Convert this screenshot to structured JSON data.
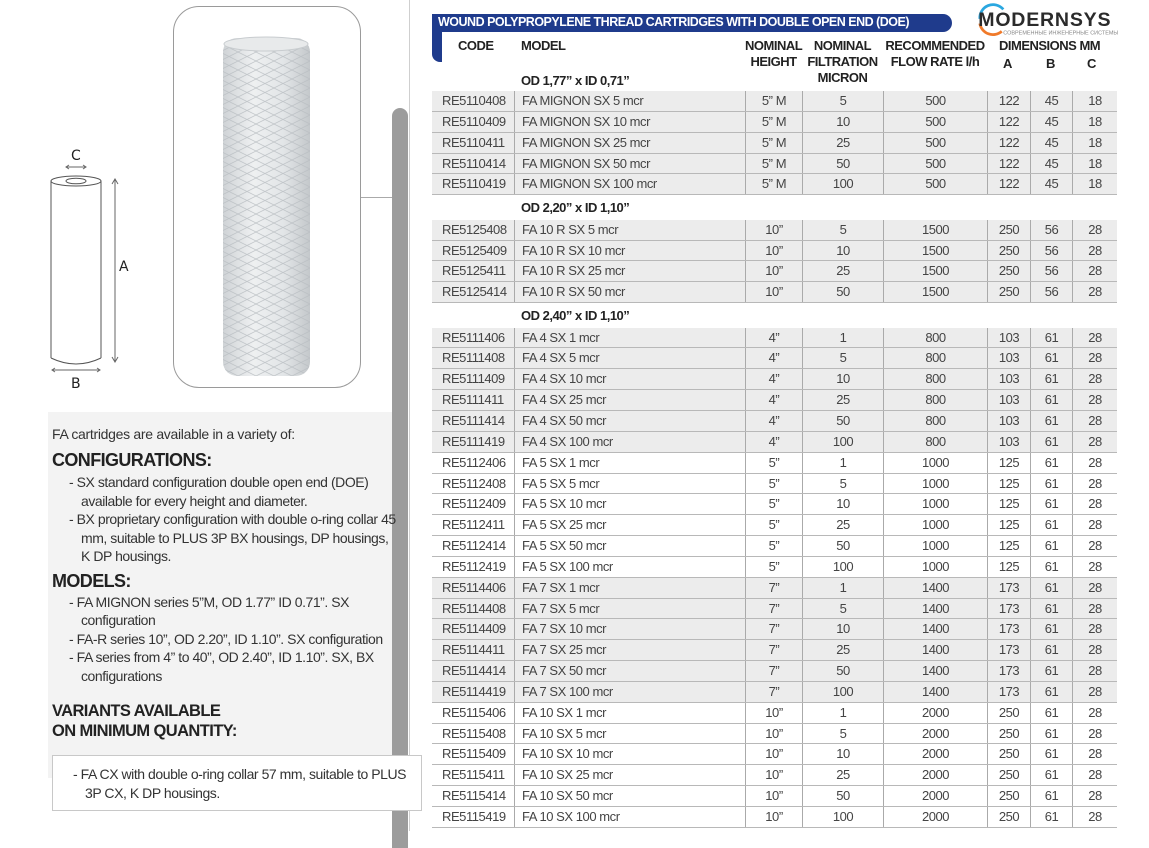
{
  "diagram": {
    "label_a": "A",
    "label_b": "B",
    "label_c": "C"
  },
  "left": {
    "intro": "FA cartridges are available in a variety of:",
    "configurations_title": "CONFIGURATIONS:",
    "configurations": [
      "- SX standard configuration double open end (DOE) available for every height and diameter.",
      "- BX proprietary configuration with double o-ring collar 45 mm, suitable to PLUS 3P BX housings, DP housings, K DP housings."
    ],
    "models_title": "MODELS:",
    "models": [
      "- FA MIGNON series 5”M, OD 1.77” ID 0.71”. SX configuration",
      "- FA-R series 10”, OD 2.20”, ID 1.10”. SX configuration",
      "- FA series from 4” to 40”, OD 2.40”, ID 1.10”. SX, BX configurations"
    ],
    "variants_title_1": "VARIANTS AVAILABLE",
    "variants_title_2": "ON MINIMUM QUANTITY:",
    "variants": [
      "- FA CX with double o-ring collar 57 mm, suitable to PLUS 3P CX, K DP housings."
    ]
  },
  "table": {
    "title": "WOUND POLYPROPYLENE THREAD CARTRIDGES WITH DOUBLE OPEN END (DOE)",
    "headers": {
      "code": "CODE",
      "model": "MODEL",
      "height_1": "NOMINAL",
      "height_2": "HEIGHT",
      "micron_1": "NOMINAL",
      "micron_2": "FILTRATION",
      "micron_3": "MICRON",
      "flow_1": "RECOMMENDED",
      "flow_2": "FLOW RATE l/h",
      "dims": "DIMENSIONS MM",
      "a": "A",
      "b": "B",
      "c": "C"
    },
    "accent_color": "#1f3b8c",
    "sections": [
      {
        "title": "OD 1,77” x ID 0,71”",
        "groups": [
          {
            "shade": true,
            "rows": [
              [
                "RE5110408",
                "FA MIGNON SX 5 mcr",
                "5” M",
                "5",
                "500",
                "122",
                "45",
                "18"
              ],
              [
                "RE5110409",
                "FA MIGNON SX 10 mcr",
                "5” M",
                "10",
                "500",
                "122",
                "45",
                "18"
              ],
              [
                "RE5110411",
                "FA MIGNON SX 25 mcr",
                "5” M",
                "25",
                "500",
                "122",
                "45",
                "18"
              ],
              [
                "RE5110414",
                "FA MIGNON SX 50 mcr",
                "5” M",
                "50",
                "500",
                "122",
                "45",
                "18"
              ],
              [
                "RE5110419",
                "FA MIGNON SX 100 mcr",
                "5” M",
                "100",
                "500",
                "122",
                "45",
                "18"
              ]
            ]
          }
        ]
      },
      {
        "title": "OD 2,20” x ID 1,10”",
        "groups": [
          {
            "shade": true,
            "rows": [
              [
                "RE5125408",
                "FA 10 R SX 5 mcr",
                "10”",
                "5",
                "1500",
                "250",
                "56",
                "28"
              ],
              [
                "RE5125409",
                "FA 10 R SX 10 mcr",
                "10”",
                "10",
                "1500",
                "250",
                "56",
                "28"
              ],
              [
                "RE5125411",
                "FA 10 R SX 25 mcr",
                "10”",
                "25",
                "1500",
                "250",
                "56",
                "28"
              ],
              [
                "RE5125414",
                "FA 10 R SX 50 mcr",
                "10”",
                "50",
                "1500",
                "250",
                "56",
                "28"
              ]
            ]
          }
        ]
      },
      {
        "title": "OD 2,40” x ID 1,10”",
        "groups": [
          {
            "shade": true,
            "rows": [
              [
                "RE5111406",
                "FA 4 SX 1 mcr",
                "4”",
                "1",
                "800",
                "103",
                "61",
                "28"
              ],
              [
                "RE5111408",
                "FA 4 SX 5 mcr",
                "4”",
                "5",
                "800",
                "103",
                "61",
                "28"
              ],
              [
                "RE5111409",
                "FA 4 SX 10 mcr",
                "4”",
                "10",
                "800",
                "103",
                "61",
                "28"
              ],
              [
                "RE5111411",
                "FA 4 SX 25 mcr",
                "4”",
                "25",
                "800",
                "103",
                "61",
                "28"
              ],
              [
                "RE5111414",
                "FA 4 SX 50 mcr",
                "4”",
                "50",
                "800",
                "103",
                "61",
                "28"
              ],
              [
                "RE5111419",
                "FA 4 SX 100 mcr",
                "4”",
                "100",
                "800",
                "103",
                "61",
                "28"
              ]
            ]
          },
          {
            "shade": false,
            "rows": [
              [
                "RE5112406",
                "FA 5 SX 1 mcr",
                "5”",
                "1",
                "1000",
                "125",
                "61",
                "28"
              ],
              [
                "RE5112408",
                "FA 5 SX 5 mcr",
                "5”",
                "5",
                "1000",
                "125",
                "61",
                "28"
              ],
              [
                "RE5112409",
                "FA 5 SX 10 mcr",
                "5”",
                "10",
                "1000",
                "125",
                "61",
                "28"
              ],
              [
                "RE5112411",
                "FA 5 SX 25 mcr",
                "5”",
                "25",
                "1000",
                "125",
                "61",
                "28"
              ],
              [
                "RE5112414",
                "FA 5 SX 50 mcr",
                "5”",
                "50",
                "1000",
                "125",
                "61",
                "28"
              ],
              [
                "RE5112419",
                "FA 5 SX 100 mcr",
                "5”",
                "100",
                "1000",
                "125",
                "61",
                "28"
              ]
            ]
          },
          {
            "shade": true,
            "rows": [
              [
                "RE5114406",
                "FA 7 SX 1 mcr",
                "7”",
                "1",
                "1400",
                "173",
                "61",
                "28"
              ],
              [
                "RE5114408",
                "FA 7 SX 5 mcr",
                "7”",
                "5",
                "1400",
                "173",
                "61",
                "28"
              ],
              [
                "RE5114409",
                "FA 7 SX 10 mcr",
                "7”",
                "10",
                "1400",
                "173",
                "61",
                "28"
              ],
              [
                "RE5114411",
                "FA 7 SX 25 mcr",
                "7”",
                "25",
                "1400",
                "173",
                "61",
                "28"
              ],
              [
                "RE5114414",
                "FA 7 SX 50 mcr",
                "7”",
                "50",
                "1400",
                "173",
                "61",
                "28"
              ],
              [
                "RE5114419",
                "FA 7 SX 100 mcr",
                "7”",
                "100",
                "1400",
                "173",
                "61",
                "28"
              ]
            ]
          },
          {
            "shade": false,
            "rows": [
              [
                "RE5115406",
                "FA 10 SX 1 mcr",
                "10”",
                "1",
                "2000",
                "250",
                "61",
                "28"
              ],
              [
                "RE5115408",
                "FA 10 SX 5 mcr",
                "10”",
                "5",
                "2000",
                "250",
                "61",
                "28"
              ],
              [
                "RE5115409",
                "FA 10 SX 10 mcr",
                "10”",
                "10",
                "2000",
                "250",
                "61",
                "28"
              ],
              [
                "RE5115411",
                "FA 10 SX 25 mcr",
                "10”",
                "25",
                "2000",
                "250",
                "61",
                "28"
              ],
              [
                "RE5115414",
                "FA 10 SX 50 mcr",
                "10”",
                "50",
                "2000",
                "250",
                "61",
                "28"
              ],
              [
                "RE5115419",
                "FA 10 SX 100 mcr",
                "10”",
                "100",
                "2000",
                "250",
                "61",
                "28"
              ]
            ]
          }
        ]
      }
    ]
  },
  "watermark": {
    "name": "MODERNSYS",
    "tagline": "СОВРЕМЕННЫЕ ИНЖЕНЕРНЫЕ СИСТЕМЫ",
    "colors": [
      "#2aa7e0",
      "#f07a2a"
    ]
  }
}
